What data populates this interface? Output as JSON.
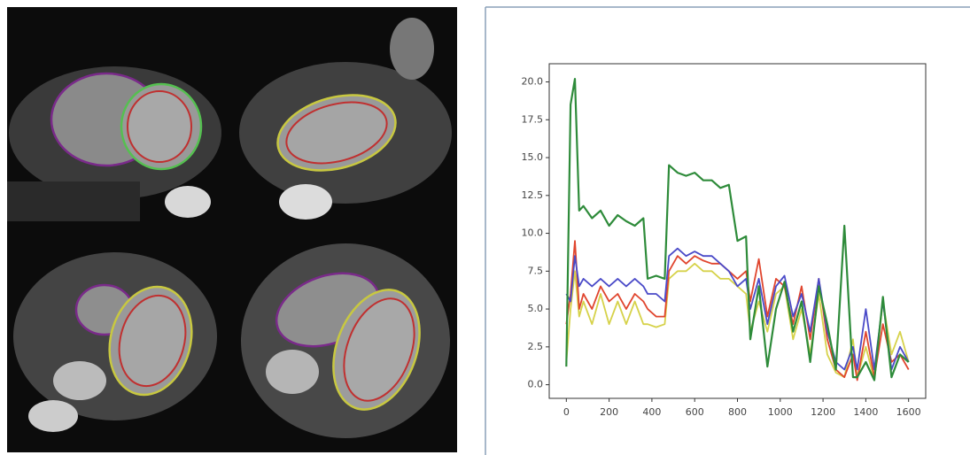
{
  "chart_data": {
    "type": "line",
    "x": [
      0,
      20,
      40,
      60,
      80,
      120,
      160,
      200,
      240,
      280,
      320,
      360,
      380,
      420,
      460,
      480,
      520,
      560,
      600,
      640,
      680,
      720,
      760,
      800,
      840,
      860,
      900,
      940,
      980,
      1020,
      1060,
      1100,
      1140,
      1180,
      1220,
      1260,
      1300,
      1340,
      1360,
      1400,
      1440,
      1480,
      1520,
      1560,
      1600
    ],
    "series": [
      {
        "color": "#d6d24a",
        "values": [
          1.5,
          5.0,
          7.5,
          4.5,
          5.5,
          4.0,
          6.0,
          4.0,
          5.5,
          4.0,
          5.5,
          4.0,
          4.0,
          3.8,
          4.0,
          7.0,
          7.5,
          7.5,
          8.0,
          7.5,
          7.5,
          7.0,
          7.0,
          6.5,
          6.0,
          3.5,
          5.5,
          3.5,
          6.0,
          6.5,
          3.0,
          5.0,
          2.0,
          6.0,
          2.0,
          0.8,
          0.5,
          3.0,
          0.5,
          2.5,
          0.3,
          5.5,
          2.0,
          3.5,
          1.5
        ]
      },
      {
        "color": "#e0452e",
        "values": [
          4.0,
          6.0,
          9.5,
          5.0,
          6.0,
          5.0,
          6.5,
          5.5,
          6.0,
          5.0,
          6.0,
          5.5,
          5.0,
          4.5,
          4.5,
          7.5,
          8.5,
          8.0,
          8.5,
          8.2,
          8.0,
          8.0,
          7.5,
          7.0,
          7.5,
          5.5,
          8.3,
          4.5,
          7.0,
          6.5,
          4.0,
          6.5,
          3.0,
          7.0,
          3.0,
          1.0,
          0.5,
          2.0,
          0.3,
          3.5,
          0.5,
          4.0,
          1.5,
          2.0,
          1.0
        ]
      },
      {
        "color": "#4a4ac8",
        "values": [
          6.0,
          5.5,
          8.5,
          6.5,
          7.0,
          6.5,
          7.0,
          6.5,
          7.0,
          6.5,
          7.0,
          6.5,
          6.0,
          6.0,
          5.5,
          8.5,
          9.0,
          8.5,
          8.8,
          8.5,
          8.5,
          8.0,
          7.5,
          6.5,
          7.0,
          5.0,
          7.0,
          4.0,
          6.5,
          7.2,
          4.5,
          6.0,
          3.5,
          7.0,
          3.5,
          1.5,
          1.0,
          2.5,
          1.0,
          5.0,
          1.0,
          5.5,
          1.0,
          2.5,
          1.5
        ]
      },
      {
        "color": "#2e8b3a",
        "values": [
          1.2,
          18.5,
          20.2,
          11.5,
          11.8,
          11.0,
          11.5,
          10.5,
          11.2,
          10.8,
          10.5,
          11.0,
          7.0,
          7.2,
          7.0,
          14.5,
          14.0,
          13.8,
          14.0,
          13.5,
          13.5,
          13.0,
          13.2,
          9.5,
          9.8,
          3.0,
          6.5,
          1.2,
          5.0,
          6.8,
          3.5,
          5.5,
          1.5,
          6.5,
          4.0,
          1.0,
          10.5,
          0.5,
          0.5,
          1.5,
          0.3,
          5.8,
          0.5,
          2.0,
          1.5
        ]
      }
    ],
    "xlim": [
      -80,
      1680
    ],
    "ylim": [
      -0.9,
      21.2
    ],
    "xticks": [
      0,
      200,
      400,
      600,
      800,
      1000,
      1200,
      1400,
      1600
    ],
    "yticks": [
      {
        "value": 0,
        "label": "0.0"
      },
      {
        "value": 2.5,
        "label": "2.5"
      },
      {
        "value": 5,
        "label": "5.0"
      },
      {
        "value": 7.5,
        "label": "7.5"
      },
      {
        "value": 10,
        "label": "10.0"
      },
      {
        "value": 12.5,
        "label": "12.5"
      },
      {
        "value": 15,
        "label": "15.0"
      },
      {
        "value": 17.5,
        "label": "17.5"
      },
      {
        "value": 20,
        "label": "20.0"
      }
    ]
  }
}
